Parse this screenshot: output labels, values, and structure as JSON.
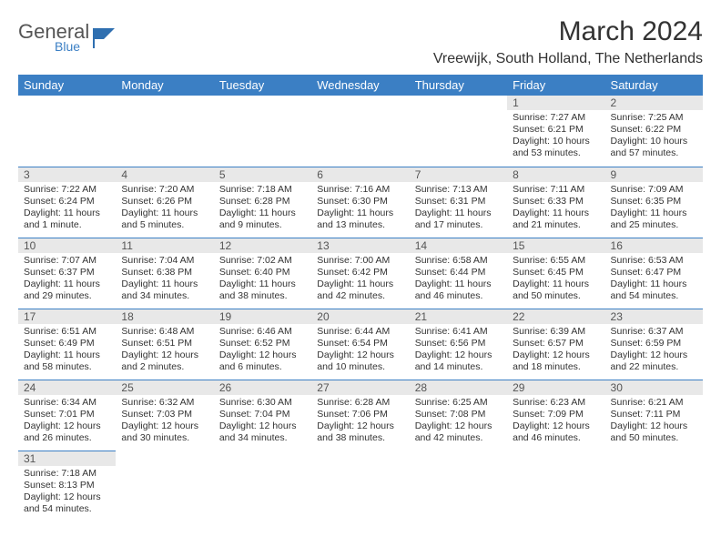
{
  "logo": {
    "text1": "General",
    "text2": "Blue",
    "shape_color": "#2f6fb0"
  },
  "title": "March 2024",
  "location": "Vreewijk, South Holland, The Netherlands",
  "colors": {
    "header_bg": "#3b7fc4",
    "header_text": "#ffffff",
    "daynum_bg": "#e8e8e8",
    "border": "#3b7fc4"
  },
  "day_headers": [
    "Sunday",
    "Monday",
    "Tuesday",
    "Wednesday",
    "Thursday",
    "Friday",
    "Saturday"
  ],
  "weeks": [
    [
      null,
      null,
      null,
      null,
      null,
      {
        "n": "1",
        "sr": "Sunrise: 7:27 AM",
        "ss": "Sunset: 6:21 PM",
        "d1": "Daylight: 10 hours",
        "d2": "and 53 minutes."
      },
      {
        "n": "2",
        "sr": "Sunrise: 7:25 AM",
        "ss": "Sunset: 6:22 PM",
        "d1": "Daylight: 10 hours",
        "d2": "and 57 minutes."
      }
    ],
    [
      {
        "n": "3",
        "sr": "Sunrise: 7:22 AM",
        "ss": "Sunset: 6:24 PM",
        "d1": "Daylight: 11 hours",
        "d2": "and 1 minute."
      },
      {
        "n": "4",
        "sr": "Sunrise: 7:20 AM",
        "ss": "Sunset: 6:26 PM",
        "d1": "Daylight: 11 hours",
        "d2": "and 5 minutes."
      },
      {
        "n": "5",
        "sr": "Sunrise: 7:18 AM",
        "ss": "Sunset: 6:28 PM",
        "d1": "Daylight: 11 hours",
        "d2": "and 9 minutes."
      },
      {
        "n": "6",
        "sr": "Sunrise: 7:16 AM",
        "ss": "Sunset: 6:30 PM",
        "d1": "Daylight: 11 hours",
        "d2": "and 13 minutes."
      },
      {
        "n": "7",
        "sr": "Sunrise: 7:13 AM",
        "ss": "Sunset: 6:31 PM",
        "d1": "Daylight: 11 hours",
        "d2": "and 17 minutes."
      },
      {
        "n": "8",
        "sr": "Sunrise: 7:11 AM",
        "ss": "Sunset: 6:33 PM",
        "d1": "Daylight: 11 hours",
        "d2": "and 21 minutes."
      },
      {
        "n": "9",
        "sr": "Sunrise: 7:09 AM",
        "ss": "Sunset: 6:35 PM",
        "d1": "Daylight: 11 hours",
        "d2": "and 25 minutes."
      }
    ],
    [
      {
        "n": "10",
        "sr": "Sunrise: 7:07 AM",
        "ss": "Sunset: 6:37 PM",
        "d1": "Daylight: 11 hours",
        "d2": "and 29 minutes."
      },
      {
        "n": "11",
        "sr": "Sunrise: 7:04 AM",
        "ss": "Sunset: 6:38 PM",
        "d1": "Daylight: 11 hours",
        "d2": "and 34 minutes."
      },
      {
        "n": "12",
        "sr": "Sunrise: 7:02 AM",
        "ss": "Sunset: 6:40 PM",
        "d1": "Daylight: 11 hours",
        "d2": "and 38 minutes."
      },
      {
        "n": "13",
        "sr": "Sunrise: 7:00 AM",
        "ss": "Sunset: 6:42 PM",
        "d1": "Daylight: 11 hours",
        "d2": "and 42 minutes."
      },
      {
        "n": "14",
        "sr": "Sunrise: 6:58 AM",
        "ss": "Sunset: 6:44 PM",
        "d1": "Daylight: 11 hours",
        "d2": "and 46 minutes."
      },
      {
        "n": "15",
        "sr": "Sunrise: 6:55 AM",
        "ss": "Sunset: 6:45 PM",
        "d1": "Daylight: 11 hours",
        "d2": "and 50 minutes."
      },
      {
        "n": "16",
        "sr": "Sunrise: 6:53 AM",
        "ss": "Sunset: 6:47 PM",
        "d1": "Daylight: 11 hours",
        "d2": "and 54 minutes."
      }
    ],
    [
      {
        "n": "17",
        "sr": "Sunrise: 6:51 AM",
        "ss": "Sunset: 6:49 PM",
        "d1": "Daylight: 11 hours",
        "d2": "and 58 minutes."
      },
      {
        "n": "18",
        "sr": "Sunrise: 6:48 AM",
        "ss": "Sunset: 6:51 PM",
        "d1": "Daylight: 12 hours",
        "d2": "and 2 minutes."
      },
      {
        "n": "19",
        "sr": "Sunrise: 6:46 AM",
        "ss": "Sunset: 6:52 PM",
        "d1": "Daylight: 12 hours",
        "d2": "and 6 minutes."
      },
      {
        "n": "20",
        "sr": "Sunrise: 6:44 AM",
        "ss": "Sunset: 6:54 PM",
        "d1": "Daylight: 12 hours",
        "d2": "and 10 minutes."
      },
      {
        "n": "21",
        "sr": "Sunrise: 6:41 AM",
        "ss": "Sunset: 6:56 PM",
        "d1": "Daylight: 12 hours",
        "d2": "and 14 minutes."
      },
      {
        "n": "22",
        "sr": "Sunrise: 6:39 AM",
        "ss": "Sunset: 6:57 PM",
        "d1": "Daylight: 12 hours",
        "d2": "and 18 minutes."
      },
      {
        "n": "23",
        "sr": "Sunrise: 6:37 AM",
        "ss": "Sunset: 6:59 PM",
        "d1": "Daylight: 12 hours",
        "d2": "and 22 minutes."
      }
    ],
    [
      {
        "n": "24",
        "sr": "Sunrise: 6:34 AM",
        "ss": "Sunset: 7:01 PM",
        "d1": "Daylight: 12 hours",
        "d2": "and 26 minutes."
      },
      {
        "n": "25",
        "sr": "Sunrise: 6:32 AM",
        "ss": "Sunset: 7:03 PM",
        "d1": "Daylight: 12 hours",
        "d2": "and 30 minutes."
      },
      {
        "n": "26",
        "sr": "Sunrise: 6:30 AM",
        "ss": "Sunset: 7:04 PM",
        "d1": "Daylight: 12 hours",
        "d2": "and 34 minutes."
      },
      {
        "n": "27",
        "sr": "Sunrise: 6:28 AM",
        "ss": "Sunset: 7:06 PM",
        "d1": "Daylight: 12 hours",
        "d2": "and 38 minutes."
      },
      {
        "n": "28",
        "sr": "Sunrise: 6:25 AM",
        "ss": "Sunset: 7:08 PM",
        "d1": "Daylight: 12 hours",
        "d2": "and 42 minutes."
      },
      {
        "n": "29",
        "sr": "Sunrise: 6:23 AM",
        "ss": "Sunset: 7:09 PM",
        "d1": "Daylight: 12 hours",
        "d2": "and 46 minutes."
      },
      {
        "n": "30",
        "sr": "Sunrise: 6:21 AM",
        "ss": "Sunset: 7:11 PM",
        "d1": "Daylight: 12 hours",
        "d2": "and 50 minutes."
      }
    ],
    [
      {
        "n": "31",
        "sr": "Sunrise: 7:18 AM",
        "ss": "Sunset: 8:13 PM",
        "d1": "Daylight: 12 hours",
        "d2": "and 54 minutes."
      },
      null,
      null,
      null,
      null,
      null,
      null
    ]
  ]
}
